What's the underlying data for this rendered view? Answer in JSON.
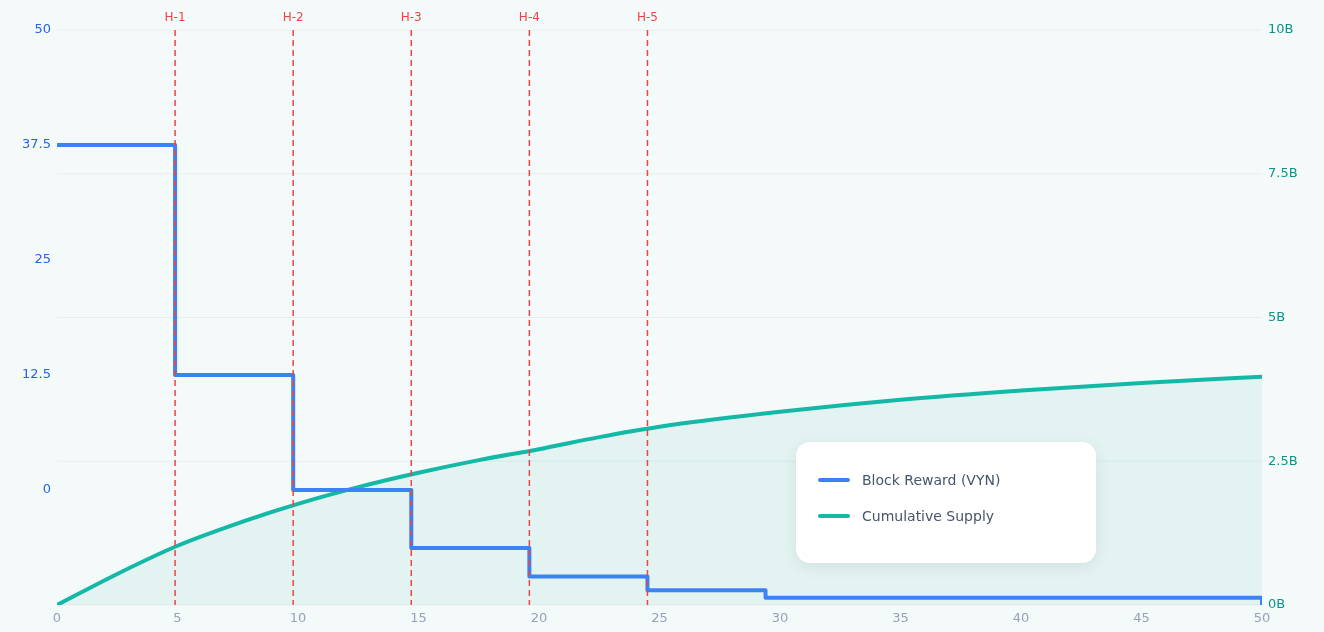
{
  "chart_data": {
    "type": "step",
    "series": [
      {
        "name": "Block Reward (VYN)",
        "color": "#3b82f6",
        "type": "step",
        "x": [
          0,
          4.9,
          9.8,
          14.7,
          19.6,
          24.5,
          29.4,
          34.5,
          50
        ],
        "values": [
          37.5,
          12.5,
          0,
          -6.3,
          -9.4,
          -10.9,
          -11.7,
          -11.7,
          -12.5
        ]
      },
      {
        "name": "Cumulative Supply",
        "color": "#14b8a6",
        "type": "area",
        "axis": "y2",
        "x": [
          0,
          2.5,
          5,
          7.5,
          10,
          12.5,
          15,
          17.5,
          20,
          22.5,
          25,
          30,
          35,
          40,
          45,
          50
        ],
        "values": [
          0,
          0.54,
          1.03,
          1.42,
          1.76,
          2.05,
          2.3,
          2.52,
          2.71,
          2.92,
          3.1,
          3.36,
          3.57,
          3.73,
          3.86,
          3.97
        ]
      }
    ],
    "xlim": [
      0,
      50
    ],
    "xticks": [
      0,
      5,
      10,
      15,
      20,
      25,
      30,
      35,
      40,
      45,
      50
    ],
    "ylim": [
      -12.5,
      50
    ],
    "yticks": [
      0,
      12.5,
      25,
      37.5,
      50
    ],
    "y2lim": [
      0,
      10
    ],
    "y2ticks": [
      {
        "value": 0,
        "label": "0B"
      },
      {
        "value": 2.5,
        "label": "2.5B"
      },
      {
        "value": 5,
        "label": "5B"
      },
      {
        "value": 7.5,
        "label": "7.5B"
      },
      {
        "value": 10,
        "label": "10B"
      }
    ],
    "ref_lines": [
      {
        "axis": "x",
        "value": 4.9,
        "label": "H-1",
        "color": "#ef4444",
        "line_style": "dashed"
      },
      {
        "axis": "x",
        "value": 9.8,
        "label": "H-2",
        "color": "#ef4444",
        "line_style": "dashed"
      },
      {
        "axis": "x",
        "value": 14.7,
        "label": "H-3",
        "color": "#ef4444",
        "line_style": "dashed"
      },
      {
        "axis": "x",
        "value": 19.6,
        "label": "H-4",
        "color": "#ef4444",
        "line_style": "dashed"
      },
      {
        "axis": "x",
        "value": 24.5,
        "label": "H-5",
        "color": "#ef4444",
        "line_style": "dashed"
      }
    ],
    "grid": "y",
    "legend": "bottom right",
    "marker": "none",
    "line_style": "solid"
  }
}
